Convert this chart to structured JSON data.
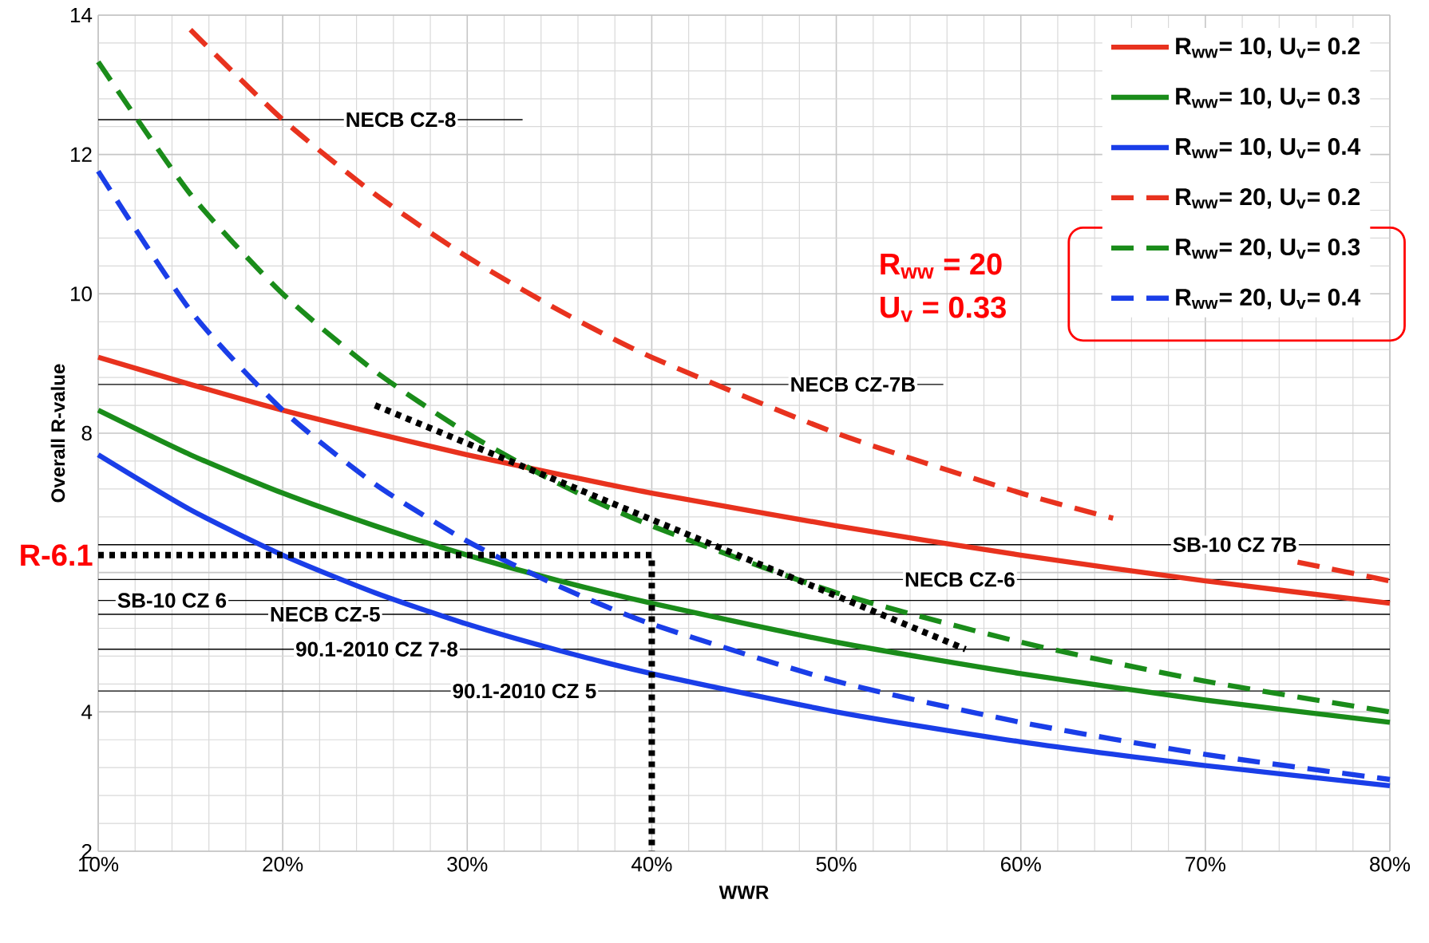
{
  "chart_data": {
    "type": "line",
    "xlabel": "WWR",
    "ylabel": "Overall R-value",
    "xlim": [
      10,
      80
    ],
    "ylim": [
      2,
      14
    ],
    "xticks": [
      {
        "value": 10,
        "label": "10%"
      },
      {
        "value": 20,
        "label": "20%"
      },
      {
        "value": 30,
        "label": "30%"
      },
      {
        "value": 40,
        "label": "40%"
      },
      {
        "value": 50,
        "label": "50%"
      },
      {
        "value": 60,
        "label": "60%"
      },
      {
        "value": 70,
        "label": "70%"
      },
      {
        "value": 80,
        "label": "80%"
      }
    ],
    "yticks": [
      2,
      4,
      {
        "value": 6,
        "label": null
      },
      8,
      10,
      12,
      14
    ],
    "grid": true,
    "legend": "top right",
    "series": [
      {
        "name": "R$_{ww}$= 10, U$_{v}$= 0.2",
        "color": "#e8321e",
        "line_style": "solid",
        "x": [
          10,
          15,
          20,
          25,
          30,
          35,
          40,
          50,
          60,
          70,
          80
        ],
        "values": [
          9.09,
          8.7,
          8.33,
          8.0,
          7.69,
          7.41,
          7.14,
          6.67,
          6.25,
          5.88,
          5.56
        ]
      },
      {
        "name": "R$_{ww}$= 10, U$_{v}$= 0.3",
        "color": "#1a8c1a",
        "line_style": "solid",
        "x": [
          10,
          15,
          20,
          25,
          30,
          35,
          40,
          50,
          60,
          70,
          80
        ],
        "values": [
          8.33,
          7.69,
          7.14,
          6.67,
          6.25,
          5.88,
          5.56,
          5.0,
          4.55,
          4.17,
          3.85
        ]
      },
      {
        "name": "R$_{ww}$= 10, U$_{v}$= 0.4",
        "color": "#1a3ee8",
        "line_style": "solid",
        "x": [
          10,
          15,
          20,
          25,
          30,
          35,
          40,
          50,
          60,
          70,
          80
        ],
        "values": [
          7.69,
          6.9,
          6.25,
          5.71,
          5.26,
          4.88,
          4.55,
          4.0,
          3.57,
          3.23,
          2.94
        ]
      },
      {
        "name": "R$_{ww}$= 20, U$_{v}$= 0.2",
        "color": "#e8321e",
        "line_style": "dashed",
        "x": [
          15,
          20,
          25,
          30,
          35,
          40,
          50,
          60,
          65,
          70,
          75,
          80
        ],
        "values": [
          13.79,
          12.5,
          11.43,
          10.53,
          9.76,
          9.09,
          8.0,
          7.14,
          6.78,
          null,
          6.15,
          5.88
        ]
      },
      {
        "name": "R$_{ww}$= 20, U$_{v}$= 0.3",
        "color": "#1a8c1a",
        "line_style": "dashed",
        "x": [
          10,
          15,
          20,
          25,
          30,
          35,
          40,
          50,
          60,
          70,
          80
        ],
        "values": [
          13.33,
          11.43,
          10.0,
          8.89,
          8.0,
          7.27,
          6.67,
          5.71,
          5.0,
          4.44,
          4.0
        ]
      },
      {
        "name": "R$_{ww}$= 20, U$_{v}$= 0.4",
        "color": "#1a3ee8",
        "line_style": "dashed",
        "x": [
          10,
          15,
          20,
          25,
          30,
          35,
          40,
          50,
          60,
          70,
          80
        ],
        "values": [
          11.76,
          9.76,
          8.33,
          7.27,
          6.45,
          5.8,
          5.26,
          4.44,
          3.85,
          3.39,
          3.03
        ]
      },
      {
        "color": "#000000",
        "line_style": "dotted",
        "x": [
          10,
          40,
          40
        ],
        "values": [
          6.25,
          6.25,
          2
        ]
      },
      {
        "color": "#000000",
        "line_style": "dotted",
        "x": [
          25,
          57
        ],
        "values": [
          8.4,
          4.9
        ]
      }
    ],
    "ref_lines": [
      {
        "axis": "y",
        "value": 12.5,
        "label": "NECB CZ-8",
        "color": "#000000"
      },
      {
        "axis": "y",
        "value": 8.7,
        "label": "NECB CZ-7B",
        "color": "#000000"
      },
      {
        "axis": "y",
        "value": 6.4,
        "label": "SB-10 CZ 7B",
        "color": "#000000"
      },
      {
        "axis": "y",
        "value": 5.9,
        "label": "NECB CZ-6",
        "color": "#000000"
      },
      {
        "axis": "y",
        "value": 5.6,
        "label": "SB-10 CZ 6",
        "color": "#000000"
      },
      {
        "axis": "y",
        "value": 5.4,
        "label": "NECB CZ-5",
        "color": "#000000"
      },
      {
        "axis": "y",
        "value": 4.9,
        "label": "90.1-2010 CZ 7-8",
        "color": "#000000"
      },
      {
        "axis": "y",
        "value": 4.3,
        "label": "90.1-2010 CZ 5",
        "color": "#000000"
      }
    ],
    "annotations": [
      {
        "text": "R-6.1",
        "x": 10,
        "y": 6.25
      },
      "R$_{ww}$ = 20",
      "U$_{v}$ = 0.33"
    ]
  }
}
